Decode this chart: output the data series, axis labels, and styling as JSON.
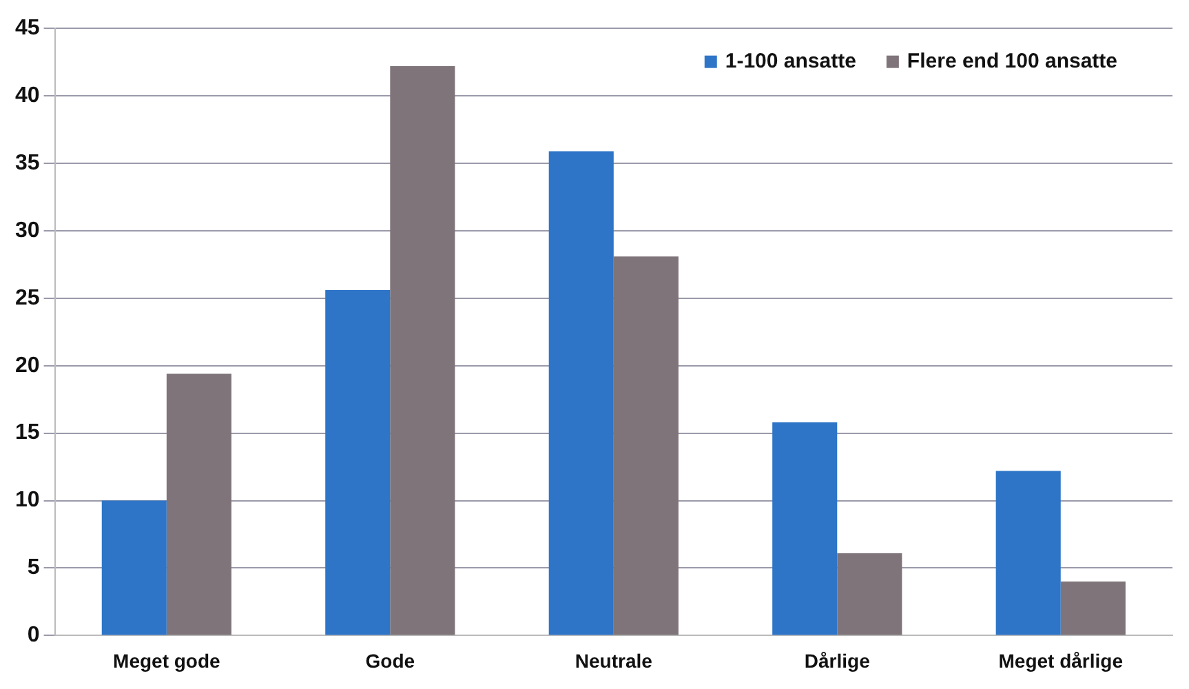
{
  "chart_data": {
    "type": "bar",
    "categories": [
      "Meget gode",
      "Gode",
      "Neutrale",
      "Dårlige",
      "Meget dårlige"
    ],
    "series": [
      {
        "name": "1-100 ansatte",
        "color": "#2e75c8",
        "values": [
          10,
          25.6,
          35.9,
          15.8,
          12.2
        ]
      },
      {
        "name": "Flere end 100 ansatte",
        "color": "#7f7479",
        "values": [
          19.4,
          42.2,
          28.1,
          6.1,
          4.0
        ]
      }
    ],
    "ylim": [
      0,
      45
    ],
    "yticks": [
      0,
      5,
      10,
      15,
      20,
      25,
      30,
      35,
      40,
      45
    ],
    "grid": "y",
    "legend": "top right"
  }
}
